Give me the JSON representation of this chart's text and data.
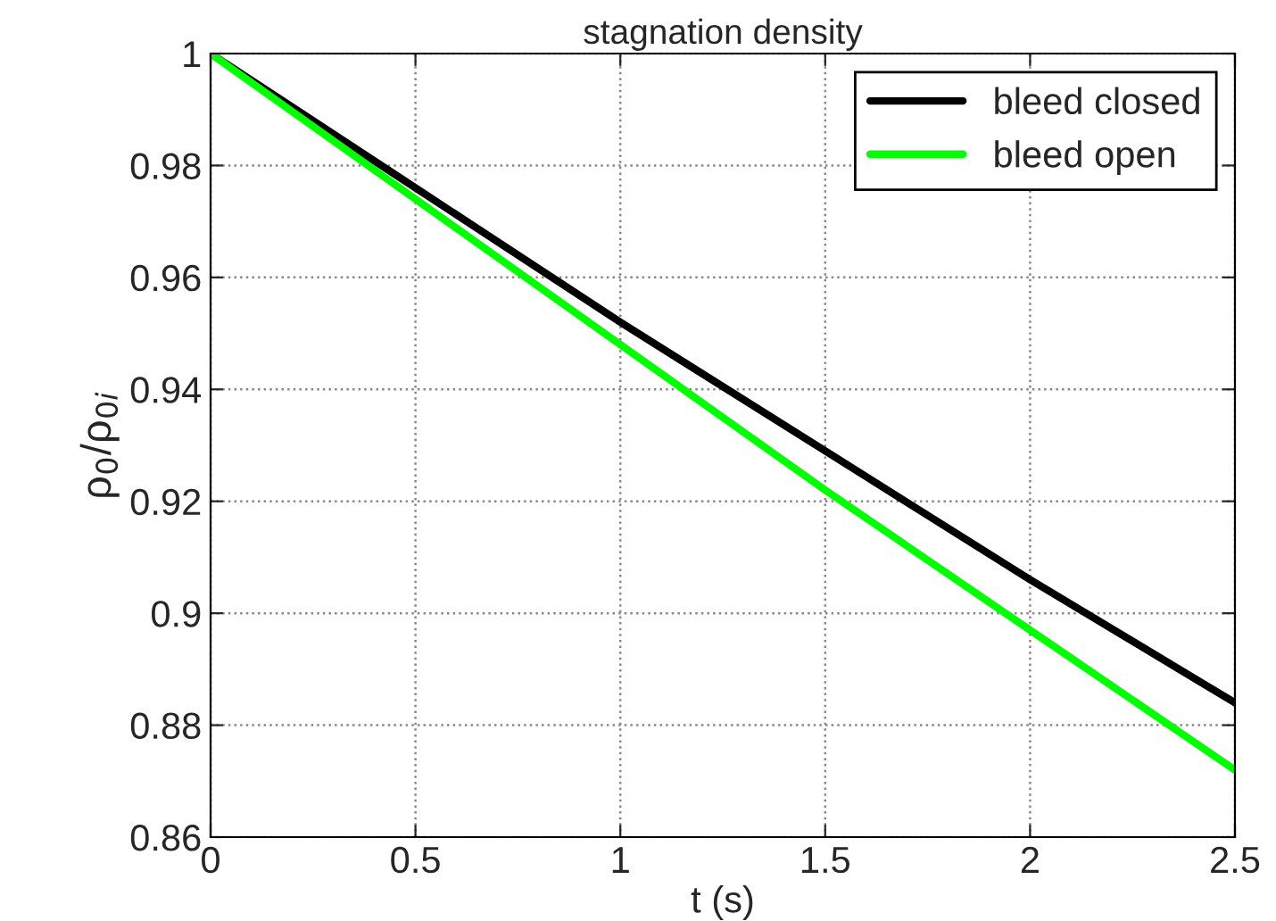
{
  "chart_data": {
    "type": "line",
    "title": "stagnation density",
    "xlabel": "t (s)",
    "ylabel": "ρ$_{0}$/ρ$_{0i}$",
    "x": [
      0,
      0.5,
      1,
      1.5,
      2,
      2.5
    ],
    "series": [
      {
        "name": "bleed closed",
        "color": "#000000",
        "values": [
          1,
          0.976,
          0.952,
          0.929,
          0.906,
          0.884
        ]
      },
      {
        "name": "bleed open",
        "color": "#00ff00",
        "values": [
          1,
          0.974,
          0.948,
          0.922,
          0.897,
          0.872
        ]
      }
    ],
    "xlim": [
      0,
      2.5
    ],
    "xticks": [
      0,
      0.5,
      1,
      1.5,
      2,
      2.5
    ],
    "ylim": [
      0.86,
      1
    ],
    "yticks": [
      0.86,
      0.88,
      0.9,
      0.92,
      0.94,
      0.96,
      0.98,
      1
    ],
    "grid": true,
    "legend": "top right",
    "line_style": "solid"
  }
}
